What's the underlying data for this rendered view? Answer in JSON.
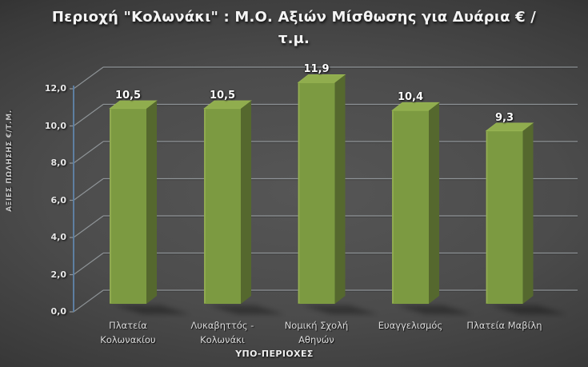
{
  "chart_data": {
    "type": "bar",
    "style": "3d-column",
    "title": "Περιοχή \"Κολωνάκι\" : Μ.Ο. Αξιών Μίσθωσης για Δυάρια € / τ.μ.",
    "title_lines": [
      "Περιοχή \"Κολωνάκι\" : Μ.Ο. Αξιών Μίσθωσης για Δυάρια € /",
      "τ.μ."
    ],
    "ylabel": "ΑΞΙΕΣ ΠΩΛΗΣΗΣ €/Τ.Μ.",
    "xlabel": "ΥΠΟ-ΠΕΡΙΟΧΕΣ",
    "categories": [
      "Πλατεία Κολωνακίου",
      "Λυκαβηττός - Κολωνάκι",
      "Νομική Σχολή Αθηνών",
      "Ευαγγελισμός",
      "Πλατεία Μαβίλη"
    ],
    "categories_lines": [
      [
        "Πλατεία",
        "Κολωνακίου"
      ],
      [
        "Λυκαβηττός -",
        "Κολωνάκι"
      ],
      [
        "Νομική Σχολή",
        "Αθηνών"
      ],
      [
        "Ευαγγελισμός"
      ],
      [
        "Πλατεία Μαβίλη"
      ]
    ],
    "values": [
      10.5,
      10.5,
      11.9,
      10.4,
      9.3
    ],
    "value_labels": [
      "10,5",
      "10,5",
      "11,9",
      "10,4",
      "9,3"
    ],
    "ylim": [
      0,
      12
    ],
    "ytick_step": 2,
    "ytick_labels": [
      "0,0",
      "2,0",
      "4,0",
      "6,0",
      "8,0",
      "10,0",
      "12,0"
    ],
    "grid": true,
    "legend": false,
    "colors": {
      "bar_front": "#7c9a41",
      "bar_top": "#90ad4e",
      "bar_side": "#55682e",
      "bar_edge_highlight": "#a7bd62",
      "axis_line": "#5f82a6",
      "gridline": "#9aa0a4",
      "background_center": "#565656",
      "background_edge": "#121212",
      "title_text": "#f4f4f4",
      "label_text": "#dcdcdc"
    }
  }
}
